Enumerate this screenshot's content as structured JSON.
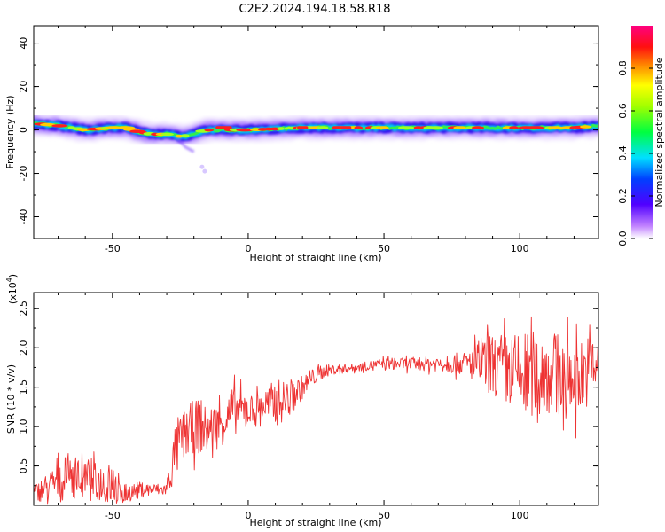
{
  "title": "C2E2.2024.194.18.58.R18",
  "chart_data": [
    {
      "type": "heatmap",
      "xlabel": "Height of straight line (km)",
      "ylabel": "Frequency (Hz)",
      "xlim": [
        -79,
        129
      ],
      "ylim": [
        -50,
        48
      ],
      "x_ticks": [
        -50,
        0,
        50,
        100
      ],
      "x_tick_labels": [
        "-50",
        "0",
        "50",
        "100"
      ],
      "y_ticks": [
        -40,
        -20,
        0,
        20,
        40
      ],
      "y_tick_labels": [
        "-40",
        "-20",
        "0",
        "20",
        "40"
      ],
      "colorbar": {
        "label": "Normalized spectral amplitude",
        "range": [
          0,
          1
        ],
        "ticks": [
          0.0,
          0.2,
          0.4,
          0.6,
          0.8
        ],
        "tick_labels": [
          "0.0",
          "0.2",
          "0.4",
          "0.6",
          "0.8"
        ],
        "colormap": "rainbow"
      },
      "ridge": {
        "x": [
          -79,
          -70,
          -60,
          -50,
          -45,
          -40,
          -35,
          -30,
          -25,
          -20,
          -18,
          -15,
          -10,
          0,
          20,
          40,
          60,
          80,
          100,
          120,
          129
        ],
        "y": [
          3,
          2,
          0,
          1,
          1,
          -1,
          -2,
          -2,
          -3,
          -2,
          -1,
          0,
          0,
          0,
          1,
          1,
          1,
          1,
          1,
          1,
          2
        ]
      },
      "streak": {
        "x": [
          -26,
          -23,
          -20
        ],
        "y": [
          -4,
          -8,
          -10
        ]
      },
      "grid": false
    },
    {
      "type": "line",
      "xlabel": "Height of straight line (km)",
      "ylabel": "SNR (10 * v/v)",
      "y_multiplier_label": "(x10",
      "y_multiplier_exponent": "4",
      "y_multiplier_close": ")",
      "xlim": [
        -79,
        129
      ],
      "ylim": [
        0,
        2.7
      ],
      "x_ticks": [
        -50,
        0,
        50,
        100
      ],
      "x_tick_labels": [
        "-50",
        "0",
        "50",
        "100"
      ],
      "y_ticks": [
        0.5,
        1.0,
        1.5,
        2.0,
        2.5
      ],
      "y_tick_labels": [
        "0.5",
        "1.0",
        "1.5",
        "2.0",
        "2.5"
      ],
      "series_color": "#ee3333",
      "envelope": {
        "x": [
          -79,
          -70,
          -65,
          -60,
          -55,
          -50,
          -45,
          -40,
          -35,
          -30,
          -28,
          -25,
          -20,
          -15,
          -10,
          -5,
          0,
          5,
          10,
          15,
          20,
          25,
          30,
          40,
          50,
          60,
          70,
          80,
          85,
          90,
          100,
          110,
          120,
          129
        ],
        "mean": [
          0.15,
          0.3,
          0.4,
          0.3,
          0.3,
          0.25,
          0.15,
          0.2,
          0.2,
          0.2,
          0.5,
          0.85,
          1.0,
          0.95,
          1.05,
          1.2,
          1.2,
          1.25,
          1.3,
          1.35,
          1.5,
          1.65,
          1.72,
          1.75,
          1.8,
          1.8,
          1.8,
          1.8,
          1.8,
          1.78,
          1.65,
          1.7,
          1.6,
          1.8
        ],
        "spread": [
          0.1,
          0.25,
          0.3,
          0.25,
          0.25,
          0.3,
          0.12,
          0.1,
          0.08,
          0.08,
          0.3,
          0.3,
          0.35,
          0.3,
          0.3,
          0.3,
          0.2,
          0.2,
          0.3,
          0.25,
          0.15,
          0.1,
          0.07,
          0.05,
          0.07,
          0.08,
          0.1,
          0.15,
          0.3,
          0.4,
          0.55,
          0.55,
          0.5,
          0.4
        ]
      },
      "grid": false
    }
  ]
}
